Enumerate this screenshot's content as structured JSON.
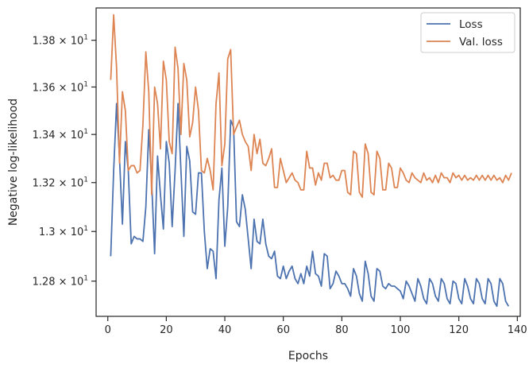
{
  "chart_data": {
    "type": "line",
    "xlabel": "Epochs",
    "ylabel": "Negative log-likelihood",
    "xlim": [
      -4,
      141
    ],
    "ylim": [
      12.66,
      13.94
    ],
    "y_scale": "log",
    "grid": false,
    "legend_position": "top-right",
    "x_ticks": [
      {
        "value": 0,
        "label": "0"
      },
      {
        "value": 20,
        "label": "20"
      },
      {
        "value": 40,
        "label": "40"
      },
      {
        "value": 60,
        "label": "60"
      },
      {
        "value": 80,
        "label": "80"
      },
      {
        "value": 100,
        "label": "100"
      },
      {
        "value": 120,
        "label": "120"
      },
      {
        "value": 140,
        "label": "140"
      }
    ],
    "y_ticks": [
      {
        "value": 12.8,
        "base": "1.28",
        "exp": "1"
      },
      {
        "value": 13.0,
        "base": "1.3",
        "exp": "1"
      },
      {
        "value": 13.2,
        "base": "1.32",
        "exp": "1"
      },
      {
        "value": 13.4,
        "base": "1.34",
        "exp": "1"
      },
      {
        "value": 13.6,
        "base": "1.36",
        "exp": "1"
      },
      {
        "value": 13.8,
        "base": "1.38",
        "exp": "1"
      }
    ],
    "x_start": 1,
    "x_step": 1,
    "series": [
      {
        "name": "Loss",
        "color": "#4c72b0",
        "values": [
          12.9,
          13.25,
          13.53,
          13.3,
          13.03,
          13.37,
          13.25,
          12.95,
          12.98,
          12.97,
          12.97,
          12.96,
          13.1,
          13.42,
          13.2,
          12.91,
          13.31,
          13.15,
          13.01,
          13.37,
          13.28,
          13.02,
          13.25,
          13.53,
          13.25,
          12.98,
          13.35,
          13.29,
          13.08,
          13.07,
          13.24,
          13.24,
          13.0,
          12.85,
          12.93,
          12.92,
          12.81,
          13.13,
          13.26,
          12.94,
          13.1,
          13.46,
          13.43,
          13.04,
          13.02,
          13.15,
          13.09,
          12.97,
          12.85,
          13.05,
          12.96,
          12.95,
          13.05,
          12.95,
          12.9,
          12.89,
          12.92,
          12.82,
          12.81,
          12.86,
          12.81,
          12.84,
          12.86,
          12.81,
          12.79,
          12.83,
          12.79,
          12.86,
          12.82,
          12.92,
          12.83,
          12.82,
          12.78,
          12.91,
          12.9,
          12.77,
          12.79,
          12.84,
          12.82,
          12.79,
          12.79,
          12.77,
          12.74,
          12.85,
          12.82,
          12.75,
          12.72,
          12.88,
          12.83,
          12.74,
          12.72,
          12.85,
          12.84,
          12.78,
          12.77,
          12.79,
          12.78,
          12.78,
          12.77,
          12.76,
          12.73,
          12.8,
          12.78,
          12.75,
          12.72,
          12.81,
          12.78,
          12.73,
          12.71,
          12.81,
          12.79,
          12.74,
          12.72,
          12.81,
          12.79,
          12.73,
          12.71,
          12.8,
          12.79,
          12.73,
          12.71,
          12.81,
          12.78,
          12.73,
          12.71,
          12.81,
          12.79,
          12.73,
          12.71,
          12.81,
          12.79,
          12.72,
          12.7,
          12.81,
          12.79,
          12.72,
          12.7
        ]
      },
      {
        "name": "Val. loss",
        "color": "#dd8452",
        "values": [
          13.63,
          13.91,
          13.68,
          13.28,
          13.58,
          13.5,
          13.25,
          13.27,
          13.27,
          13.24,
          13.25,
          13.44,
          13.75,
          13.58,
          13.15,
          13.6,
          13.53,
          13.34,
          13.71,
          13.63,
          13.37,
          13.32,
          13.77,
          13.68,
          13.4,
          13.7,
          13.63,
          13.39,
          13.45,
          13.6,
          13.5,
          13.25,
          13.24,
          13.3,
          13.25,
          13.17,
          13.53,
          13.66,
          13.27,
          13.36,
          13.72,
          13.76,
          13.4,
          13.43,
          13.46,
          13.4,
          13.37,
          13.35,
          13.25,
          13.4,
          13.32,
          13.38,
          13.28,
          13.27,
          13.3,
          13.34,
          13.18,
          13.18,
          13.3,
          13.25,
          13.2,
          13.22,
          13.24,
          13.21,
          13.2,
          13.17,
          13.17,
          13.33,
          13.26,
          13.26,
          13.19,
          13.24,
          13.21,
          13.28,
          13.28,
          13.22,
          13.23,
          13.21,
          13.21,
          13.25,
          13.25,
          13.16,
          13.15,
          13.33,
          13.32,
          13.16,
          13.14,
          13.36,
          13.32,
          13.16,
          13.15,
          13.33,
          13.3,
          13.17,
          13.17,
          13.28,
          13.26,
          13.18,
          13.18,
          13.26,
          13.24,
          13.21,
          13.2,
          13.24,
          13.22,
          13.21,
          13.2,
          13.24,
          13.21,
          13.22,
          13.2,
          13.23,
          13.2,
          13.24,
          13.22,
          13.22,
          13.2,
          13.24,
          13.22,
          13.23,
          13.21,
          13.23,
          13.21,
          13.22,
          13.21,
          13.23,
          13.21,
          13.23,
          13.21,
          13.23,
          13.21,
          13.23,
          13.21,
          13.22,
          13.2,
          13.23,
          13.21,
          13.24
        ]
      }
    ]
  }
}
